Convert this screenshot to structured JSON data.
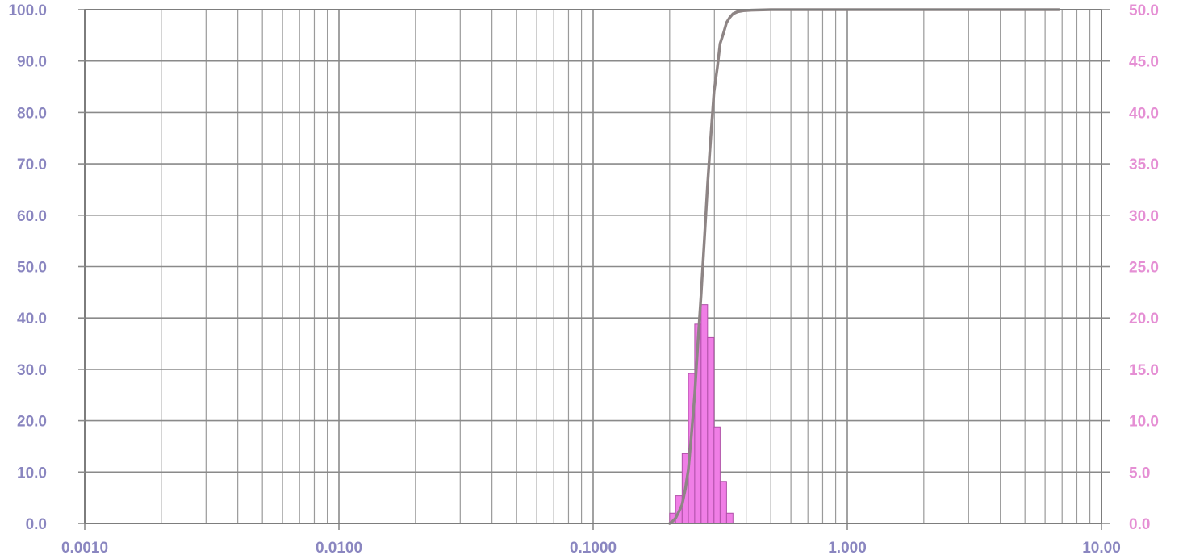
{
  "chart_data": {
    "type": "bar",
    "x_scale": "log",
    "xlim": [
      0.001,
      10
    ],
    "x_ticks": [
      "0.0010",
      "0.0100",
      "0.1000",
      "1.000",
      "10.00"
    ],
    "ylim_left": [
      0,
      100
    ],
    "ylim_right": [
      0,
      50
    ],
    "y_ticks_left": [
      "0.0",
      "10.0",
      "20.0",
      "30.0",
      "40.0",
      "50.0",
      "60.0",
      "70.0",
      "80.0",
      "90.0",
      "100.0"
    ],
    "y_ticks_right": [
      "0.0",
      "5.0",
      "10.0",
      "15.0",
      "20.0",
      "25.0",
      "30.0",
      "35.0",
      "40.0",
      "45.0",
      "50.0"
    ],
    "grid": true,
    "series": [
      {
        "type": "bar",
        "axis": "right",
        "color": "#f07ee6",
        "bins": [
          {
            "x0": 0.2,
            "x1": 0.211,
            "value": 1.0
          },
          {
            "x0": 0.211,
            "x1": 0.224,
            "value": 2.7
          },
          {
            "x0": 0.224,
            "x1": 0.237,
            "value": 6.8
          },
          {
            "x0": 0.237,
            "x1": 0.251,
            "value": 14.6
          },
          {
            "x0": 0.251,
            "x1": 0.266,
            "value": 19.4
          },
          {
            "x0": 0.266,
            "x1": 0.282,
            "value": 21.3
          },
          {
            "x0": 0.282,
            "x1": 0.299,
            "value": 18.1
          },
          {
            "x0": 0.299,
            "x1": 0.316,
            "value": 9.4
          },
          {
            "x0": 0.316,
            "x1": 0.335,
            "value": 4.1
          },
          {
            "x0": 0.335,
            "x1": 0.355,
            "value": 1.0
          }
        ]
      },
      {
        "type": "line",
        "axis": "left",
        "color": "#8e8585",
        "x": [
          0.2,
          0.205,
          0.211,
          0.218,
          0.224,
          0.231,
          0.237,
          0.244,
          0.251,
          0.258,
          0.266,
          0.274,
          0.282,
          0.29,
          0.299,
          0.308,
          0.316,
          0.326,
          0.335,
          0.345,
          0.355,
          0.37,
          0.39,
          0.42,
          0.5,
          1.0,
          3.0,
          6.8
        ],
        "y": [
          0.0,
          0.4,
          1.0,
          2.4,
          3.7,
          6.9,
          10.5,
          17.6,
          25.1,
          34.8,
          44.5,
          55.3,
          65.8,
          74.9,
          84.0,
          88.7,
          93.4,
          95.5,
          97.5,
          98.5,
          99.2,
          99.6,
          99.8,
          99.9,
          100.0,
          100.0,
          100.0,
          100.0
        ]
      }
    ]
  },
  "colors": {
    "bars": "#f07ee6",
    "cumulative_line": "#8e8585",
    "left_axis_text": "#8a86c0",
    "right_axis_text": "#e58fd4"
  }
}
